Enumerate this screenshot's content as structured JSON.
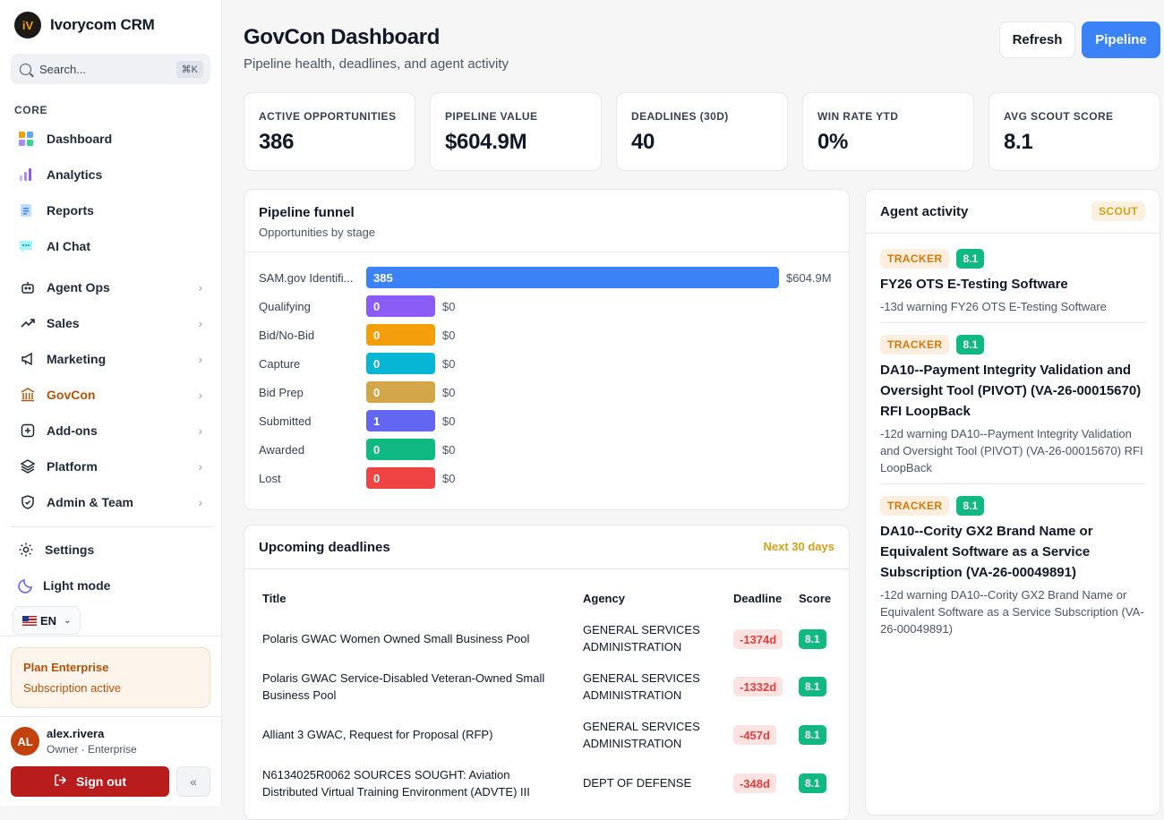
{
  "brand": {
    "logo": "iV",
    "name": "Ivorycom CRM"
  },
  "search": {
    "placeholder": "Search...",
    "shortcut": "⌘K"
  },
  "sidebar": {
    "section_core": "CORE",
    "core_items": [
      {
        "label": "Dashboard",
        "icon": "grid-icon"
      },
      {
        "label": "Analytics",
        "icon": "bar-chart-icon"
      },
      {
        "label": "Reports",
        "icon": "report-icon"
      },
      {
        "label": "AI Chat",
        "icon": "chat-icon"
      }
    ],
    "groups": [
      {
        "label": "Agent Ops",
        "icon": "robot-icon"
      },
      {
        "label": "Sales",
        "icon": "trending-icon"
      },
      {
        "label": "Marketing",
        "icon": "megaphone-icon"
      },
      {
        "label": "GovCon",
        "icon": "bank-icon",
        "active": true
      },
      {
        "label": "Add-ons",
        "icon": "plus-square-icon"
      },
      {
        "label": "Platform",
        "icon": "layers-icon"
      },
      {
        "label": "Admin & Team",
        "icon": "shield-icon"
      }
    ],
    "settings_label": "Settings",
    "theme_label": "Light mode",
    "language": "EN",
    "plan_title": "Plan Enterprise",
    "plan_status": "Subscription active",
    "user_initials": "AL",
    "user_name": "alex.rivera",
    "user_role": "Owner · Enterprise",
    "signout_label": "Sign out"
  },
  "header": {
    "title": "GovCon Dashboard",
    "subtitle": "Pipeline health, deadlines, and agent activity",
    "refresh_label": "Refresh",
    "pipeline_label": "Pipeline"
  },
  "kpis": [
    {
      "label": "ACTIVE OPPORTUNITIES",
      "value": "386"
    },
    {
      "label": "PIPELINE VALUE",
      "value": "$604.9M"
    },
    {
      "label": "DEADLINES (30D)",
      "value": "40"
    },
    {
      "label": "WIN RATE YTD",
      "value": "0%"
    },
    {
      "label": "AVG SCOUT SCORE",
      "value": "8.1"
    }
  ],
  "funnel": {
    "title": "Pipeline funnel",
    "subtitle": "Opportunities by stage",
    "stages": [
      {
        "stage": "SAM.gov Identifi...",
        "count": "385",
        "value": "$604.9M",
        "fraction": 1.0,
        "color": "#3b82f6"
      },
      {
        "stage": "Qualifying",
        "count": "0",
        "value": "$0",
        "fraction": 0,
        "color": "#8b5cf6"
      },
      {
        "stage": "Bid/No-Bid",
        "count": "0",
        "value": "$0",
        "fraction": 0,
        "color": "#f59e0b"
      },
      {
        "stage": "Capture",
        "count": "0",
        "value": "$0",
        "fraction": 0,
        "color": "#06b6d4"
      },
      {
        "stage": "Bid Prep",
        "count": "0",
        "value": "$0",
        "fraction": 0,
        "color": "#d4a64a"
      },
      {
        "stage": "Submitted",
        "count": "1",
        "value": "$0",
        "fraction": 0,
        "color": "#6366f1"
      },
      {
        "stage": "Awarded",
        "count": "0",
        "value": "$0",
        "fraction": 0,
        "color": "#10b981"
      },
      {
        "stage": "Lost",
        "count": "0",
        "value": "$0",
        "fraction": 0,
        "color": "#ef4444"
      }
    ]
  },
  "deadlines": {
    "title": "Upcoming deadlines",
    "tag": "Next 30 days",
    "columns": {
      "title": "Title",
      "agency": "Agency",
      "deadline": "Deadline",
      "score": "Score"
    },
    "rows": [
      {
        "title": "Polaris GWAC Women Owned Small Business Pool",
        "agency": "GENERAL SERVICES ADMINISTRATION",
        "deadline": "-1374d",
        "score": "8.1"
      },
      {
        "title": "Polaris GWAC Service-Disabled Veteran-Owned Small Business Pool",
        "agency": "GENERAL SERVICES ADMINISTRATION",
        "deadline": "-1332d",
        "score": "8.1"
      },
      {
        "title": "Alliant 3 GWAC, Request for Proposal (RFP)",
        "agency": "GENERAL SERVICES ADMINISTRATION",
        "deadline": "-457d",
        "score": "8.1"
      },
      {
        "title": "N6134025R0062 SOURCES SOUGHT: Aviation Distributed Virtual Training Environment (ADVTE) III",
        "agency": "DEPT OF DEFENSE",
        "deadline": "-348d",
        "score": "8.1"
      }
    ]
  },
  "activity": {
    "title": "Agent activity",
    "badge": "SCOUT",
    "items": [
      {
        "tag": "TRACKER",
        "score": "8.1",
        "title": "FY26 OTS E-Testing Software",
        "desc": "-13d warning FY26 OTS E-Testing Software"
      },
      {
        "tag": "TRACKER",
        "score": "8.1",
        "title": "DA10--Payment Integrity Validation and Oversight Tool (PIVOT) (VA-26-00015670) RFI LoopBack",
        "desc": "-12d warning DA10--Payment Integrity Validation and Oversight Tool (PIVOT) (VA-26-00015670) RFI LoopBack"
      },
      {
        "tag": "TRACKER",
        "score": "8.1",
        "title": "DA10--Cority GX2 Brand Name or Equivalent Software as a Service Subscription (VA-26-00049891)",
        "desc": "-12d warning DA10--Cority GX2 Brand Name or Equivalent Software as a Service Subscription (VA-26-00049891)"
      }
    ]
  }
}
